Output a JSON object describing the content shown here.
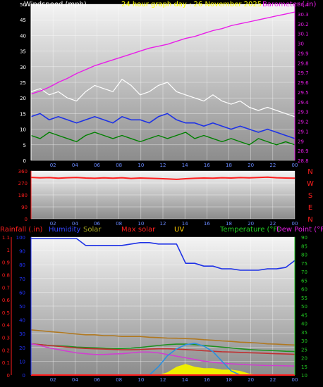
{
  "colors": {
    "background": "#000000",
    "plot_gradient_top": "#f4f4f4",
    "plot_gradient_bottom": "#8c8c8c",
    "grid": "#ffffff",
    "wind_gust": "#ffffff",
    "wind_avg": "#1e32e6",
    "wind_speed": "#008000",
    "barometer": "#e81ee8",
    "direction": "#ff1e1e",
    "rain_axis": "#ff1e1e",
    "humidity_axis": "#2233ff",
    "solar": "#a8a820",
    "uv": "#ffcc00",
    "temperature_axis": "#22cc22",
    "dew_axis": "#e81ee8",
    "max_solar": "#2a90e0",
    "temp_orange": "#b07820",
    "temp_green": "#1e9020",
    "dew_red": "#c03030",
    "dew_magenta": "#d040d0",
    "humidity_line": "#1e32e6",
    "solar_fill": "#eeee00"
  },
  "chart_data": [
    {
      "type": "line",
      "title": "24 hour graph day : 26 November 2025",
      "series": [
        {
          "name": "Windspeed (mph)",
          "axis": "left",
          "values": [
            8,
            7,
            9,
            8,
            7,
            6,
            8,
            9,
            8,
            7,
            8,
            7,
            6,
            7,
            8,
            7,
            8,
            9,
            7,
            8,
            7,
            6,
            7,
            6,
            5,
            7,
            6,
            5,
            6,
            5
          ]
        },
        {
          "name": "Windspeed (mph) avg",
          "axis": "left",
          "values": [
            14,
            15,
            13,
            14,
            13,
            12,
            13,
            14,
            13,
            12,
            14,
            13,
            13,
            12,
            14,
            15,
            13,
            12,
            12,
            11,
            12,
            11,
            10,
            11,
            10,
            9,
            10,
            9,
            8,
            7
          ]
        },
        {
          "name": "Windspeed (mph) gust",
          "axis": "left",
          "values": [
            22,
            23,
            21,
            22,
            20,
            19,
            22,
            24,
            23,
            22,
            26,
            24,
            21,
            22,
            24,
            25,
            22,
            21,
            20,
            19,
            21,
            19,
            18,
            19,
            17,
            16,
            17,
            16,
            15,
            14
          ]
        },
        {
          "name": "Barometer (.in)",
          "axis": "right",
          "values": [
            29.48,
            29.51,
            29.55,
            29.6,
            29.64,
            29.69,
            29.73,
            29.77,
            29.8,
            29.83,
            29.86,
            29.89,
            29.92,
            29.95,
            29.97,
            29.99,
            30.02,
            30.05,
            30.07,
            30.1,
            30.13,
            30.15,
            30.18,
            30.2,
            30.22,
            30.24,
            30.26,
            30.28,
            30.3,
            30.32
          ]
        }
      ],
      "left_axis": {
        "label": "Windspeed (mph)",
        "ticks": [
          "0",
          "5",
          "10",
          "15",
          "20",
          "25",
          "30",
          "35",
          "40",
          "45",
          "50"
        ],
        "ylim": [
          0,
          50
        ]
      },
      "right_axis": {
        "label": "Barometer (.in)",
        "ticks": [
          "28.8",
          "28.9",
          "29",
          "29.1",
          "29.2",
          "29.3",
          "29.4",
          "29.5",
          "29.6",
          "29.7",
          "29.8",
          "29.9",
          "30",
          "30.1",
          "30.2",
          "30.3",
          "30.4"
        ],
        "ylim": [
          28.8,
          30.4
        ]
      },
      "x_ticks": [
        "02",
        "04",
        "06",
        "08",
        "10",
        "12",
        "14",
        "16",
        "18",
        "20",
        "22",
        "00"
      ],
      "grid": true
    },
    {
      "type": "line",
      "series": [
        {
          "name": "Wind direction",
          "values": [
            312,
            308,
            310,
            306,
            309,
            311,
            307,
            305,
            308,
            306,
            309,
            304,
            307,
            305,
            303,
            300,
            297,
            302,
            305,
            307,
            306,
            309,
            307,
            310,
            308,
            311,
            314,
            309,
            307,
            306
          ]
        }
      ],
      "left_axis": {
        "ticks": [
          "0",
          "90",
          "180",
          "270",
          "360"
        ],
        "ylim": [
          0,
          360
        ]
      },
      "right_axis": {
        "ticks": [
          "N",
          "W",
          "S",
          "E",
          "N"
        ]
      },
      "x_ticks": [
        "02",
        "04",
        "06",
        "08",
        "10",
        "12",
        "14",
        "16",
        "18",
        "20",
        "22",
        "00"
      ],
      "grid": true
    },
    {
      "type": "line",
      "legend": [
        "Rainfall (.in)",
        "Humidity",
        "Solar",
        "Max solar",
        "UV",
        "Temperature (°F)",
        "Dew Point (°F"
      ],
      "left_outer_axis": {
        "label": "Rainfall (.in)",
        "ticks": [
          "0",
          "0.1",
          "0.2",
          "0.3",
          "0.4",
          "0.5",
          "0.6",
          "0.7",
          "0.8",
          "0.9",
          "1",
          "1.1"
        ],
        "ylim": [
          0,
          1.15
        ]
      },
      "left_inner_axis": {
        "label": "Humidity",
        "ticks": [
          "0",
          "10",
          "20",
          "30",
          "40",
          "50",
          "60",
          "70",
          "80",
          "90",
          "100"
        ],
        "ylim": [
          0,
          100
        ]
      },
      "right_axis": {
        "label": "Temperature (°F)",
        "ticks": [
          "10",
          "15",
          "20",
          "25",
          "30",
          "35",
          "40",
          "45",
          "50",
          "55",
          "60",
          "65",
          "70",
          "75",
          "80",
          "85",
          "90"
        ],
        "ylim": [
          8,
          92
        ]
      },
      "series": [
        {
          "name": "Humidity",
          "axis": "humidity",
          "values": [
            99,
            99,
            99,
            99,
            99,
            99,
            94,
            94,
            94,
            94,
            94,
            95,
            96,
            96,
            95,
            95,
            95,
            81,
            81,
            79,
            79,
            77,
            77,
            76,
            76,
            76,
            77,
            77,
            78,
            83
          ]
        },
        {
          "name": "Temperature (°F)",
          "axis": "temperature",
          "values": [
            35.5,
            35,
            34.5,
            34,
            33.5,
            33,
            32.5,
            32.5,
            32,
            32,
            31.5,
            31.5,
            31.5,
            31,
            30.8,
            30.5,
            30.4,
            30.2,
            30,
            29.5,
            29.2,
            28.8,
            28.5,
            28,
            27.8,
            27.5,
            27,
            26.8,
            26.5,
            26.3
          ]
        },
        {
          "name": "Temperature (°F) secondary",
          "axis": "temperature",
          "values": [
            27,
            26.5,
            26,
            25.8,
            25.5,
            25,
            24.8,
            24.6,
            24.4,
            24.2,
            24.2,
            24.4,
            24.8,
            25.4,
            26,
            26.5,
            26.8,
            26.8,
            26.5,
            26,
            25.5,
            25,
            24.5,
            24,
            23.5,
            23.2,
            23,
            22.8,
            22.5,
            22.3
          ]
        },
        {
          "name": "Dew Point (°F)",
          "axis": "temperature",
          "values": [
            27,
            26.5,
            26,
            25.5,
            25,
            24.5,
            24.2,
            24,
            23.8,
            23.6,
            23.4,
            23.4,
            23.5,
            23.8,
            24,
            24,
            23.8,
            23.5,
            23.2,
            22.8,
            22.5,
            22.2,
            22,
            21.8,
            21.6,
            21.4,
            21.2,
            21,
            20.8,
            20.6
          ]
        },
        {
          "name": "Dew Point (°F) secondary",
          "axis": "temperature",
          "values": [
            27,
            26,
            24.5,
            23.5,
            22.5,
            21.5,
            21,
            20.5,
            20.5,
            20.8,
            21,
            21.5,
            22,
            22,
            21.5,
            20.5,
            19.5,
            18.5,
            17.5,
            16.5,
            15.8,
            15.2,
            14.8,
            14.5,
            14.2,
            14,
            13.8,
            13.8,
            13.6,
            13.5
          ]
        },
        {
          "name": "Max solar",
          "axis": "humidity",
          "values": [
            0,
            0,
            0,
            0,
            0,
            0,
            0,
            0,
            0,
            0,
            0,
            0,
            0,
            0,
            6,
            14,
            19,
            22,
            23,
            21,
            17,
            10,
            3,
            0,
            0,
            0,
            0,
            0,
            0,
            0
          ]
        },
        {
          "name": "Solar",
          "axis": "humidity",
          "values": [
            0,
            0,
            0,
            0,
            0,
            0,
            0,
            0,
            0,
            0,
            0,
            0,
            0,
            0,
            0,
            2,
            6,
            8,
            6,
            5,
            5,
            4,
            4,
            3,
            1,
            0,
            0,
            0,
            0,
            0
          ]
        },
        {
          "name": "Rainfall (.in)",
          "axis": "rain",
          "values": [
            0,
            0,
            0,
            0,
            0,
            0,
            0,
            0,
            0,
            0,
            0,
            0,
            0,
            0,
            0,
            0,
            0,
            0,
            0,
            0,
            0,
            0,
            0,
            0,
            0,
            0,
            0,
            0,
            0,
            0
          ]
        }
      ],
      "x_ticks": [
        "02",
        "04",
        "06",
        "08",
        "10",
        "12",
        "14",
        "16",
        "18",
        "20",
        "22",
        "00"
      ],
      "grid": true
    }
  ]
}
